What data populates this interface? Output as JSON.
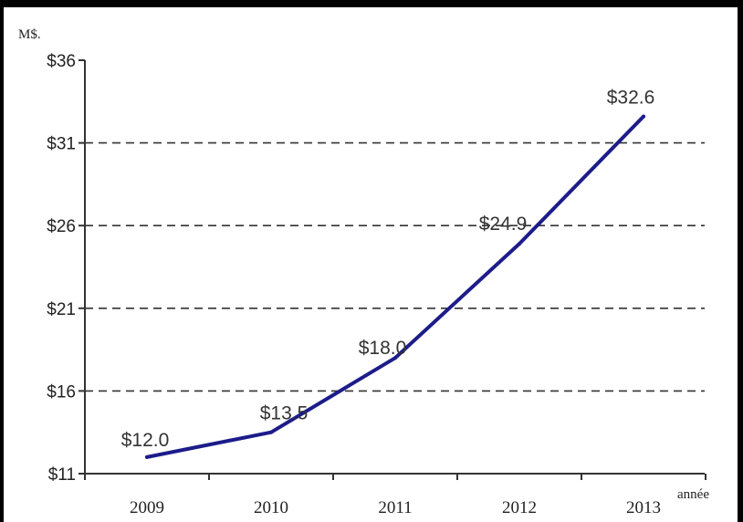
{
  "chart_data": {
    "type": "line",
    "title": "",
    "ylabel": "M$.",
    "xlabel": "année",
    "categories": [
      "2009",
      "2010",
      "2011",
      "2012",
      "2013"
    ],
    "values": [
      12.0,
      13.5,
      18.0,
      24.9,
      32.6
    ],
    "data_labels": [
      "$12.0",
      "$13.5",
      "$18.0",
      "$24.9",
      "$32.6"
    ],
    "y_ticks": [
      11,
      16,
      21,
      26,
      31,
      36
    ],
    "y_tick_labels": [
      "$11",
      "$16",
      "$21",
      "$26",
      "$31",
      "$36"
    ],
    "ylim": [
      11,
      36
    ],
    "grid": "dashed horizontal",
    "line_color": "#1c1c8a"
  }
}
